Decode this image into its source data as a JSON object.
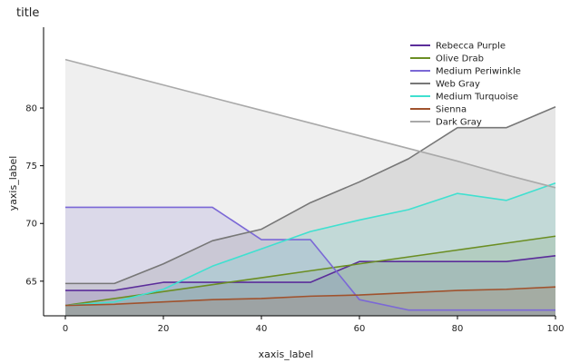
{
  "chart_data": {
    "type": "area",
    "title": "title",
    "xlabel": "xaxis_label",
    "ylabel": "yaxis_label",
    "xlim": [
      0,
      100
    ],
    "ylim": [
      62,
      87
    ],
    "x_ticks": [
      0,
      20,
      40,
      60,
      80,
      100
    ],
    "y_ticks": [
      65,
      70,
      75,
      80
    ],
    "legend_position": "top-right",
    "grid": false,
    "x": [
      0,
      10,
      20,
      30,
      40,
      50,
      60,
      70,
      80,
      90,
      100
    ],
    "series": [
      {
        "name": "Rebecca Purple",
        "color": "#5b2d9a",
        "values": [
          64.2,
          64.2,
          64.9,
          64.9,
          64.9,
          64.9,
          66.7,
          66.7,
          66.7,
          66.7,
          67.2
        ]
      },
      {
        "name": "Olive Drab",
        "color": "#6b8e23",
        "values": [
          62.9,
          63.5,
          64.1,
          64.7,
          65.3,
          65.9,
          66.5,
          67.1,
          67.7,
          68.3,
          68.9
        ]
      },
      {
        "name": "Medium Periwinkle",
        "color": "#7b68d6",
        "values": [
          71.4,
          71.4,
          71.4,
          71.4,
          68.6,
          68.6,
          63.4,
          62.5,
          62.5,
          62.5,
          62.5
        ]
      },
      {
        "name": "Web Gray",
        "color": "#777777",
        "values": [
          64.8,
          64.8,
          66.5,
          68.5,
          69.5,
          71.8,
          73.6,
          75.6,
          78.3,
          78.3,
          80.1
        ]
      },
      {
        "name": "Medium Turquoise",
        "color": "#40e0d0",
        "values": [
          62.9,
          63.2,
          64.3,
          66.3,
          67.8,
          69.3,
          70.3,
          71.2,
          72.6,
          72.0,
          73.5
        ]
      },
      {
        "name": "Sienna",
        "color": "#a0522d",
        "values": [
          62.9,
          63.0,
          63.2,
          63.4,
          63.5,
          63.7,
          63.8,
          64.0,
          64.2,
          64.3,
          64.5
        ]
      },
      {
        "name": "Dark Gray",
        "color": "#a9a9a9",
        "values": [
          84.2,
          83.1,
          82.0,
          80.9,
          79.8,
          78.7,
          77.6,
          76.5,
          75.4,
          74.2,
          73.1
        ]
      }
    ]
  }
}
